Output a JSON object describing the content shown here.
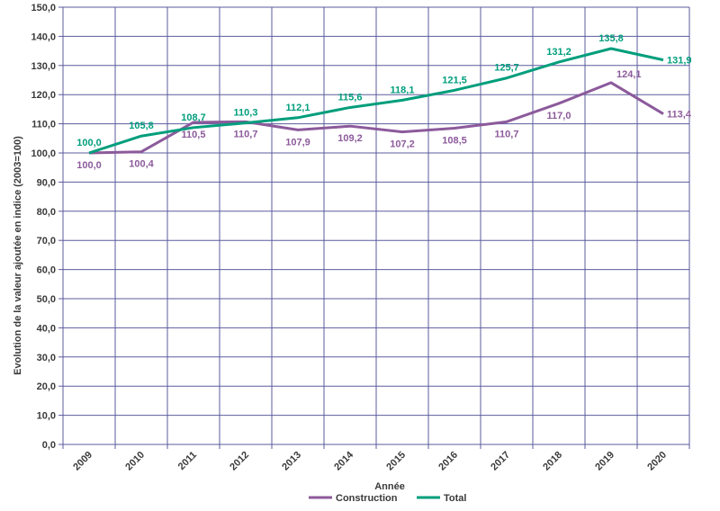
{
  "chart_data": {
    "type": "line",
    "xlabel": "Année",
    "ylabel": "Evolution de la valeur ajoutée en indice (2003=100)",
    "ylim": [
      0,
      150
    ],
    "yticks": [
      "0,0",
      "10,0",
      "20,0",
      "30,0",
      "40,0",
      "50,0",
      "60,0",
      "70,0",
      "80,0",
      "90,0",
      "100,0",
      "110,0",
      "120,0",
      "130,0",
      "140,0",
      "150,0"
    ],
    "categories": [
      "2009",
      "2010",
      "2011",
      "2012",
      "2013",
      "2014",
      "2015",
      "2016",
      "2017",
      "2018",
      "2019",
      "2020"
    ],
    "grid": "on",
    "legend_position": "bottom",
    "series": [
      {
        "name": "Construction",
        "color": "#8c5a9b",
        "values": [
          100.0,
          100.4,
          110.5,
          110.7,
          107.9,
          109.2,
          107.2,
          108.5,
          110.7,
          117.0,
          124.1,
          113.4
        ],
        "labels": [
          "100,0",
          "100,4",
          "110,5",
          "110,7",
          "107,9",
          "109,2",
          "107,2",
          "108,5",
          "110,7",
          "117,0",
          "124,1",
          "113,4"
        ]
      },
      {
        "name": "Total",
        "color": "#009e7c",
        "values": [
          100.0,
          105.8,
          108.7,
          110.3,
          112.1,
          115.6,
          118.1,
          121.5,
          125.7,
          131.2,
          135.8,
          131.9
        ],
        "labels": [
          "100,0",
          "105,8",
          "108,7",
          "110,3",
          "112,1",
          "115,6",
          "118,1",
          "121,5",
          "125,7",
          "131,2",
          "135,8",
          "131,9"
        ]
      }
    ]
  }
}
